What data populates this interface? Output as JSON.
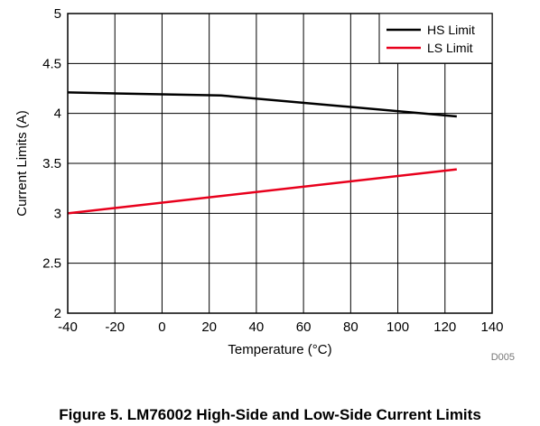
{
  "chart_data": {
    "type": "line",
    "xlabel": "Temperature (°C)",
    "ylabel": "Current Limits (A)",
    "xlim": [
      -40,
      140
    ],
    "ylim": [
      2,
      5
    ],
    "x_ticks": [
      -40,
      -20,
      0,
      20,
      40,
      60,
      80,
      100,
      120,
      140
    ],
    "y_ticks": [
      2,
      2.5,
      3,
      3.5,
      4,
      4.5,
      5
    ],
    "y_tick_labels": [
      "2",
      "2.5",
      "3",
      "3.5",
      "4",
      "4.5",
      "5"
    ],
    "grid": true,
    "legend_position": "top-right",
    "series": [
      {
        "name": "HS Limit",
        "color": "#000000",
        "x": [
          -40,
          25,
          125
        ],
        "y": [
          4.21,
          4.18,
          3.97
        ]
      },
      {
        "name": "LS Limit",
        "color": "#e8001c",
        "x": [
          -40,
          125
        ],
        "y": [
          3.0,
          3.44
        ]
      }
    ]
  },
  "figure_id": "D005",
  "caption": "Figure 5. LM76002 High-Side and Low-Side Current Limits"
}
